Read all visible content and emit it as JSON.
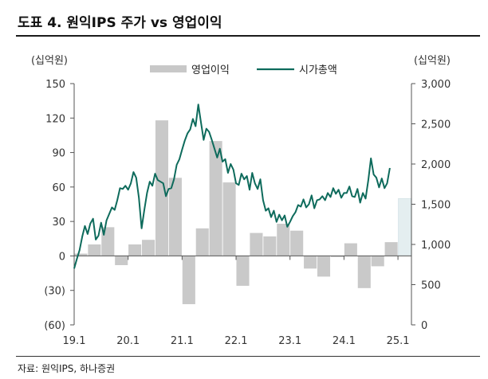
{
  "title": "도표 4. 원익IPS 주가 vs 영업이익",
  "source": "자료: 원익IPS, 하나증권",
  "chart_data": {
    "type": "bar+line",
    "left_unit": "(십억원)",
    "right_unit": "(십억원)",
    "left_axis": {
      "min": -60,
      "max": 150,
      "ticks": [
        150,
        120,
        90,
        60,
        30,
        0,
        -30,
        -60
      ],
      "tick_labels": [
        "150",
        "120",
        "90",
        "60",
        "30",
        "0",
        "(30)",
        "(60)"
      ]
    },
    "right_axis": {
      "min": 0,
      "max": 3000,
      "ticks": [
        3000,
        2500,
        2000,
        1500,
        1000,
        500,
        0
      ],
      "tick_labels": [
        "3,000",
        "2,500",
        "2,000",
        "1,500",
        "1,000",
        "500",
        "0"
      ]
    },
    "x_axis": {
      "min": 2019.0,
      "max": 2025.25,
      "ticks": [
        2019.0,
        2020.0,
        2021.0,
        2022.0,
        2023.0,
        2024.0,
        2025.0
      ],
      "tick_labels": [
        "19.1",
        "20.1",
        "21.1",
        "22.1",
        "23.1",
        "24.1",
        "25.1"
      ]
    },
    "legend": [
      {
        "name": "영업이익",
        "kind": "bar",
        "color": "#c8c8c8"
      },
      {
        "name": "시가총액",
        "kind": "line",
        "color": "#0e6b5c"
      }
    ],
    "bar_series": {
      "name": "영업이익",
      "axis": "left",
      "quarters": [
        "1Q19",
        "2Q19",
        "3Q19",
        "4Q19",
        "1Q20",
        "2Q20",
        "3Q20",
        "4Q20",
        "1Q21",
        "2Q21",
        "3Q21",
        "4Q21",
        "1Q22",
        "2Q22",
        "3Q22",
        "4Q22",
        "1Q23",
        "2Q23",
        "3Q23",
        "4Q23",
        "1Q24",
        "2Q24",
        "3Q24",
        "4Q24",
        "1Q25"
      ],
      "x": [
        2019.0,
        2019.25,
        2019.5,
        2019.75,
        2020.0,
        2020.25,
        2020.5,
        2020.75,
        2021.0,
        2021.25,
        2021.5,
        2021.75,
        2022.0,
        2022.25,
        2022.5,
        2022.75,
        2023.0,
        2023.25,
        2023.5,
        2023.75,
        2024.0,
        2024.25,
        2024.5,
        2024.75,
        2025.0
      ],
      "values": [
        2,
        10,
        25,
        -8,
        10,
        14,
        118,
        68,
        -42,
        24,
        100,
        64,
        -26,
        20,
        17,
        28,
        22,
        -11,
        -18,
        -1,
        11,
        -28,
        -9,
        12,
        50
      ],
      "highlight_last": true
    },
    "line_series": {
      "name": "시가총액",
      "axis": "right",
      "points": [
        [
          2019.0,
          700
        ],
        [
          2019.05,
          820
        ],
        [
          2019.1,
          930
        ],
        [
          2019.15,
          1100
        ],
        [
          2019.2,
          1230
        ],
        [
          2019.25,
          1130
        ],
        [
          2019.3,
          1260
        ],
        [
          2019.35,
          1320
        ],
        [
          2019.4,
          1060
        ],
        [
          2019.45,
          1110
        ],
        [
          2019.5,
          1270
        ],
        [
          2019.55,
          1120
        ],
        [
          2019.6,
          1300
        ],
        [
          2019.65,
          1380
        ],
        [
          2019.7,
          1460
        ],
        [
          2019.75,
          1430
        ],
        [
          2019.8,
          1550
        ],
        [
          2019.85,
          1700
        ],
        [
          2019.9,
          1690
        ],
        [
          2019.95,
          1730
        ],
        [
          2020.0,
          1680
        ],
        [
          2020.05,
          1760
        ],
        [
          2020.1,
          1900
        ],
        [
          2020.15,
          1830
        ],
        [
          2020.2,
          1580
        ],
        [
          2020.25,
          1200
        ],
        [
          2020.3,
          1430
        ],
        [
          2020.35,
          1640
        ],
        [
          2020.4,
          1780
        ],
        [
          2020.45,
          1730
        ],
        [
          2020.5,
          1880
        ],
        [
          2020.55,
          1800
        ],
        [
          2020.6,
          1780
        ],
        [
          2020.65,
          1760
        ],
        [
          2020.7,
          1600
        ],
        [
          2020.75,
          1690
        ],
        [
          2020.8,
          1700
        ],
        [
          2020.85,
          1810
        ],
        [
          2020.9,
          1990
        ],
        [
          2020.95,
          2060
        ],
        [
          2021.0,
          2180
        ],
        [
          2021.05,
          2290
        ],
        [
          2021.1,
          2380
        ],
        [
          2021.15,
          2430
        ],
        [
          2021.2,
          2560
        ],
        [
          2021.25,
          2470
        ],
        [
          2021.3,
          2740
        ],
        [
          2021.35,
          2520
        ],
        [
          2021.4,
          2300
        ],
        [
          2021.45,
          2440
        ],
        [
          2021.5,
          2400
        ],
        [
          2021.55,
          2300
        ],
        [
          2021.6,
          2190
        ],
        [
          2021.65,
          2080
        ],
        [
          2021.7,
          2190
        ],
        [
          2021.75,
          2030
        ],
        [
          2021.8,
          2060
        ],
        [
          2021.85,
          1890
        ],
        [
          2021.9,
          2000
        ],
        [
          2021.95,
          1930
        ],
        [
          2022.0,
          1760
        ],
        [
          2022.05,
          1740
        ],
        [
          2022.1,
          1880
        ],
        [
          2022.15,
          1810
        ],
        [
          2022.2,
          1850
        ],
        [
          2022.25,
          1680
        ],
        [
          2022.3,
          1890
        ],
        [
          2022.35,
          1760
        ],
        [
          2022.4,
          1690
        ],
        [
          2022.45,
          1810
        ],
        [
          2022.5,
          1550
        ],
        [
          2022.55,
          1420
        ],
        [
          2022.6,
          1450
        ],
        [
          2022.65,
          1340
        ],
        [
          2022.7,
          1420
        ],
        [
          2022.75,
          1280
        ],
        [
          2022.8,
          1370
        ],
        [
          2022.85,
          1300
        ],
        [
          2022.9,
          1360
        ],
        [
          2022.95,
          1220
        ],
        [
          2023.0,
          1280
        ],
        [
          2023.05,
          1350
        ],
        [
          2023.1,
          1400
        ],
        [
          2023.15,
          1490
        ],
        [
          2023.2,
          1470
        ],
        [
          2023.25,
          1560
        ],
        [
          2023.3,
          1460
        ],
        [
          2023.35,
          1500
        ],
        [
          2023.4,
          1610
        ],
        [
          2023.45,
          1450
        ],
        [
          2023.5,
          1550
        ],
        [
          2023.55,
          1560
        ],
        [
          2023.6,
          1600
        ],
        [
          2023.65,
          1550
        ],
        [
          2023.7,
          1640
        ],
        [
          2023.75,
          1590
        ],
        [
          2023.8,
          1700
        ],
        [
          2023.85,
          1630
        ],
        [
          2023.9,
          1680
        ],
        [
          2023.95,
          1580
        ],
        [
          2024.0,
          1640
        ],
        [
          2024.05,
          1640
        ],
        [
          2024.1,
          1720
        ],
        [
          2024.15,
          1600
        ],
        [
          2024.2,
          1590
        ],
        [
          2024.25,
          1690
        ],
        [
          2024.3,
          1520
        ],
        [
          2024.35,
          1640
        ],
        [
          2024.4,
          1570
        ],
        [
          2024.45,
          1800
        ],
        [
          2024.5,
          2070
        ],
        [
          2024.55,
          1870
        ],
        [
          2024.6,
          1830
        ],
        [
          2024.65,
          1710
        ],
        [
          2024.7,
          1820
        ],
        [
          2024.75,
          1700
        ],
        [
          2024.8,
          1760
        ],
        [
          2024.85,
          1950
        ]
      ]
    }
  }
}
